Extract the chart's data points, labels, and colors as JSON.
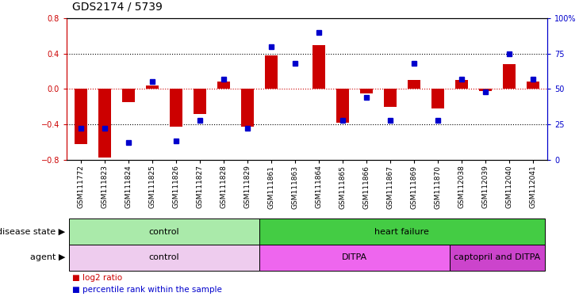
{
  "title": "GDS2174 / 5739",
  "samples": [
    "GSM111772",
    "GSM111823",
    "GSM111824",
    "GSM111825",
    "GSM111826",
    "GSM111827",
    "GSM111828",
    "GSM111829",
    "GSM111861",
    "GSM111863",
    "GSM111864",
    "GSM111865",
    "GSM111866",
    "GSM111867",
    "GSM111869",
    "GSM111870",
    "GSM112038",
    "GSM112039",
    "GSM112040",
    "GSM112041"
  ],
  "log2_ratio": [
    -0.62,
    -0.78,
    -0.15,
    0.04,
    -0.43,
    -0.28,
    0.08,
    -0.43,
    0.38,
    0.0,
    0.5,
    -0.38,
    -0.05,
    -0.2,
    0.1,
    -0.22,
    0.1,
    -0.02,
    0.28,
    0.08
  ],
  "percentile": [
    22,
    22,
    12,
    55,
    13,
    28,
    57,
    22,
    80,
    68,
    90,
    28,
    44,
    28,
    68,
    28,
    57,
    48,
    75,
    57
  ],
  "bar_color": "#cc0000",
  "dot_color": "#0000cc",
  "ylim": [
    -0.8,
    0.8
  ],
  "y2lim": [
    0,
    100
  ],
  "yticks": [
    -0.8,
    -0.4,
    0.0,
    0.4,
    0.8
  ],
  "y2ticks": [
    0,
    25,
    50,
    75,
    100
  ],
  "y2ticklabels": [
    "0",
    "25",
    "50",
    "75",
    "100%"
  ],
  "dotted_lines_black": [
    -0.4,
    0.4
  ],
  "dotted_line_red": 0.0,
  "disease_state_groups": [
    {
      "label": "control",
      "start": 0,
      "end": 8,
      "color": "#aaeaaa"
    },
    {
      "label": "heart failure",
      "start": 8,
      "end": 20,
      "color": "#44cc44"
    }
  ],
  "agent_groups": [
    {
      "label": "control",
      "start": 0,
      "end": 8,
      "color": "#eeccee"
    },
    {
      "label": "DITPA",
      "start": 8,
      "end": 16,
      "color": "#ee66ee"
    },
    {
      "label": "captopril and DITPA",
      "start": 16,
      "end": 20,
      "color": "#cc44cc"
    }
  ],
  "legend_items": [
    {
      "label": "log2 ratio",
      "color": "#cc0000"
    },
    {
      "label": "percentile rank within the sample",
      "color": "#0000cc"
    }
  ],
  "bar_width": 0.55,
  "background_color": "#ffffff",
  "title_fontsize": 10,
  "tick_fontsize": 7,
  "label_fontsize": 8,
  "annot_fontsize": 8
}
